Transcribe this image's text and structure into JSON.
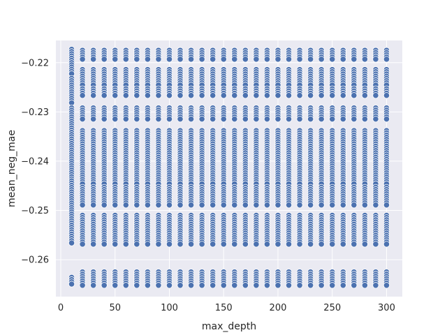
{
  "chart_data": {
    "type": "scatter",
    "title": "",
    "xlabel": "max_depth",
    "ylabel": "mean_neg_mae",
    "xlim": [
      -4.5,
      314.5
    ],
    "ylim": [
      -0.2675,
      -0.2155
    ],
    "xticks": [
      0,
      50,
      100,
      150,
      200,
      250,
      300
    ],
    "xtick_labels": [
      "0",
      "50",
      "100",
      "150",
      "200",
      "250",
      "300"
    ],
    "yticks": [
      -0.26,
      -0.25,
      -0.24,
      -0.23,
      -0.22
    ],
    "ytick_labels": [
      "−0.26",
      "−0.25",
      "−0.24",
      "−0.23",
      "−0.22"
    ],
    "grid": true,
    "legend": "none",
    "style": {
      "background": "#eaeaf2",
      "grid_color": "#ffffff",
      "marker_color": "#4c72b0",
      "marker_edge": "#ffffff"
    },
    "x": [
      10,
      20,
      30,
      40,
      50,
      60,
      70,
      80,
      90,
      100,
      110,
      120,
      130,
      140,
      150,
      160,
      170,
      180,
      190,
      200,
      210,
      220,
      230,
      240,
      250,
      260,
      270,
      280,
      290,
      300
    ],
    "series": [
      {
        "x": 10,
        "y_bands": [
          [
            -0.2173,
            -0.2225
          ],
          [
            -0.2232,
            -0.2285
          ],
          [
            -0.2292,
            -0.2437
          ],
          [
            -0.244,
            -0.257
          ],
          [
            -0.2636,
            -0.2652
          ]
        ]
      },
      {
        "x": "20-300",
        "y_bands": [
          [
            -0.2175,
            -0.2195
          ],
          [
            -0.2214,
            -0.2248
          ],
          [
            -0.2253,
            -0.2268
          ],
          [
            -0.2292,
            -0.2316
          ],
          [
            -0.2338,
            -0.2448
          ],
          [
            -0.2453,
            -0.249
          ],
          [
            -0.251,
            -0.257
          ],
          [
            -0.2625,
            -0.2652
          ]
        ]
      }
    ]
  }
}
